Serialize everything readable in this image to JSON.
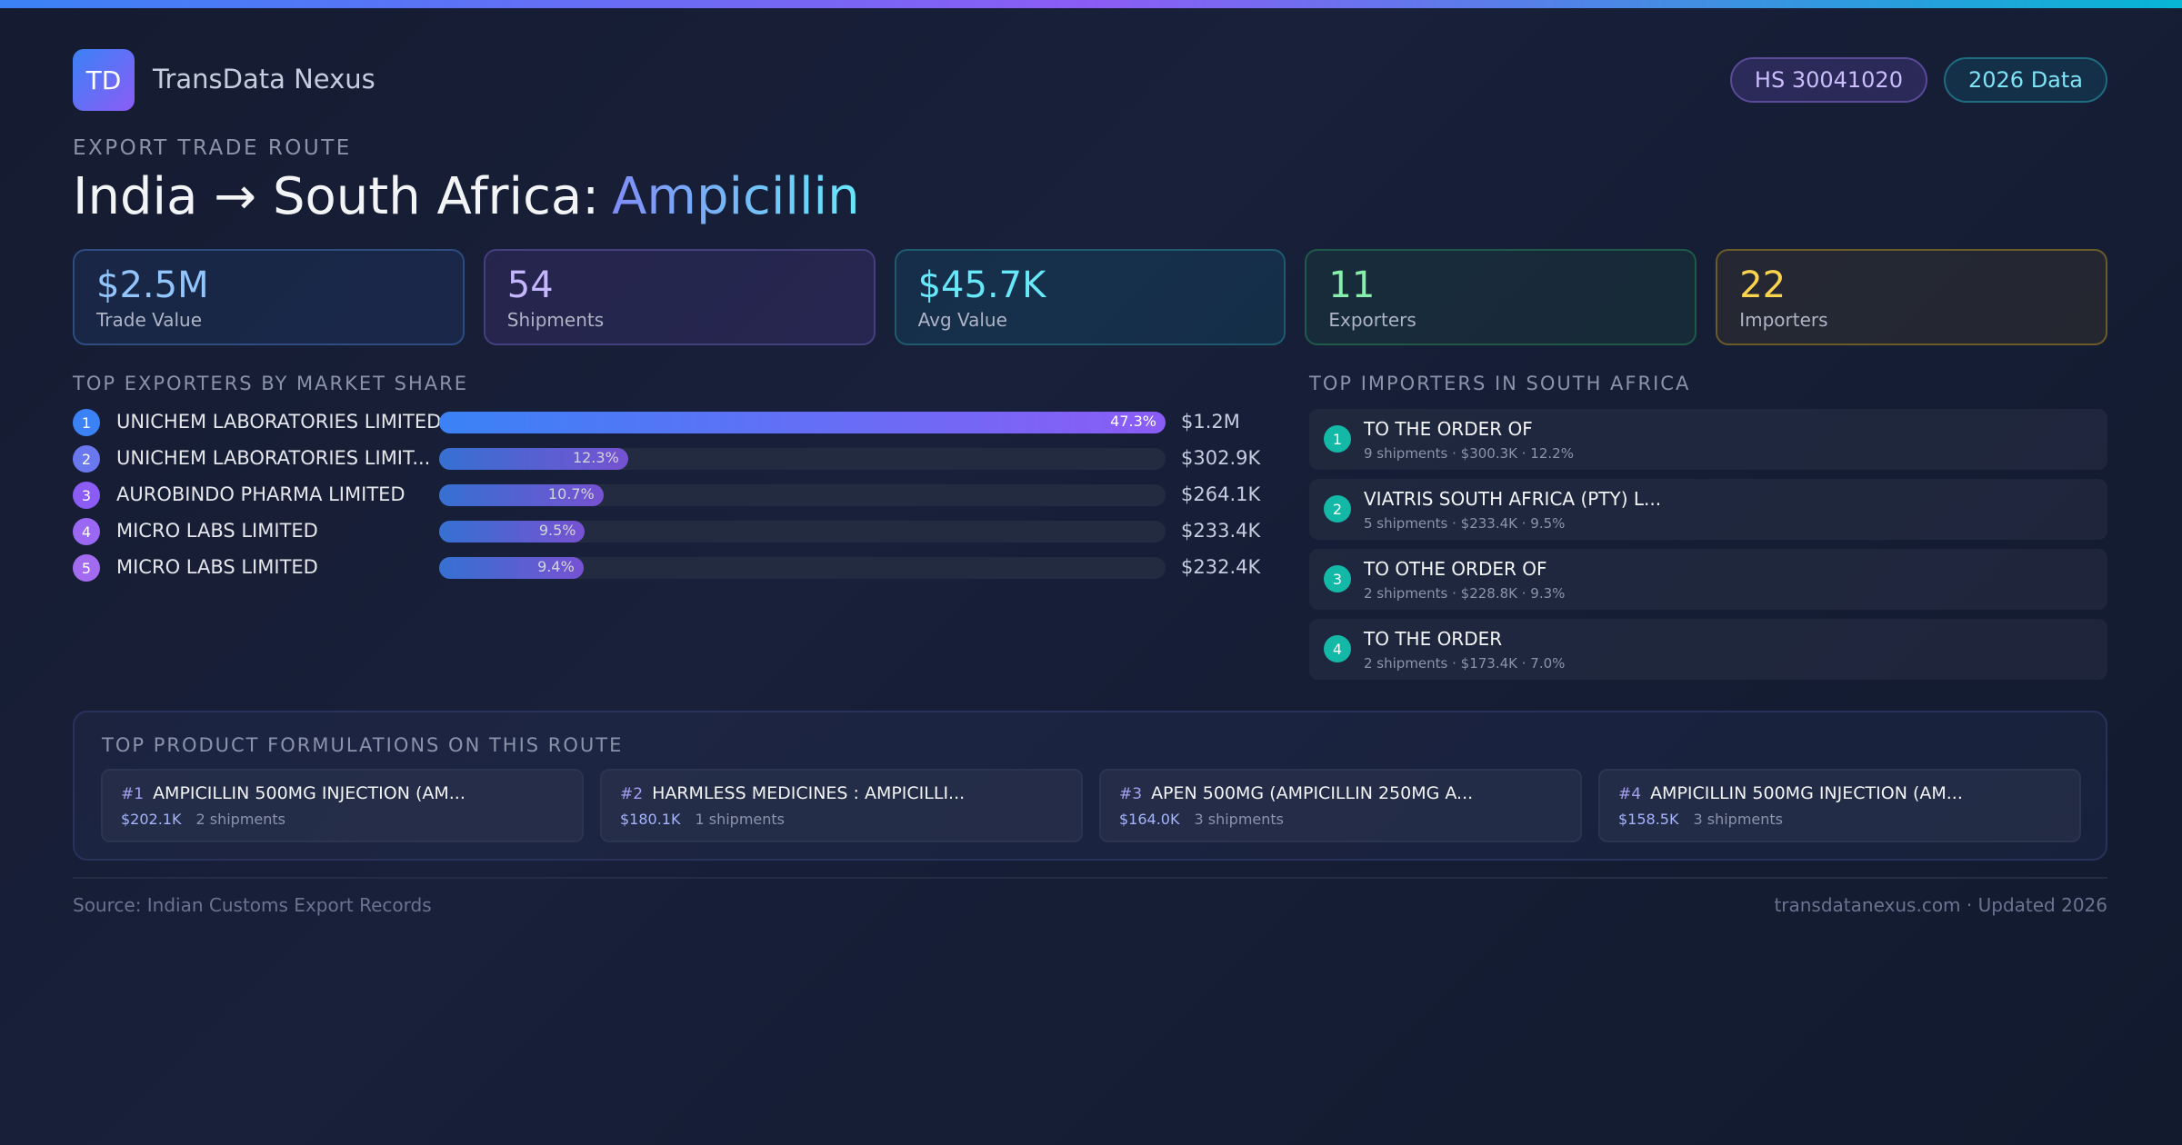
{
  "header": {
    "logo": "TD",
    "brand": "TransData Nexus",
    "badges": [
      "HS 30041020",
      "2026 Data"
    ]
  },
  "route": {
    "kicker": "EXPORT TRADE ROUTE",
    "title": "India → South Africa:",
    "product": "Ampicillin"
  },
  "stats": [
    {
      "value": "$2.5M",
      "label": "Trade Value"
    },
    {
      "value": "54",
      "label": "Shipments"
    },
    {
      "value": "$45.7K",
      "label": "Avg Value"
    },
    {
      "value": "11",
      "label": "Exporters"
    },
    {
      "value": "22",
      "label": "Importers"
    }
  ],
  "exporters": {
    "title": "TOP EXPORTERS BY MARKET SHARE",
    "items": [
      {
        "rank": 1,
        "name": "UNICHEM LABORATORIES LIMITED",
        "share": 47.3,
        "share_label": "47.3%",
        "value": "$1.2M"
      },
      {
        "rank": 2,
        "name": "UNICHEM LABORATORIES LIMIT...",
        "share": 12.3,
        "share_label": "12.3%",
        "value": "$302.9K"
      },
      {
        "rank": 3,
        "name": "AUROBINDO PHARMA LIMITED",
        "share": 10.7,
        "share_label": "10.7%",
        "value": "$264.1K"
      },
      {
        "rank": 4,
        "name": "MICRO LABS LIMITED",
        "share": 9.5,
        "share_label": "9.5%",
        "value": "$233.4K"
      },
      {
        "rank": 5,
        "name": "MICRO LABS LIMITED",
        "share": 9.4,
        "share_label": "9.4%",
        "value": "$232.4K"
      }
    ]
  },
  "importers": {
    "title": "TOP IMPORTERS IN SOUTH AFRICA",
    "items": [
      {
        "rank": 1,
        "name": "TO THE ORDER OF",
        "detail": "9 shipments · $300.3K · 12.2%"
      },
      {
        "rank": 2,
        "name": "VIATRIS SOUTH AFRICA (PTY) L...",
        "detail": "5 shipments · $233.4K · 9.5%"
      },
      {
        "rank": 3,
        "name": "TO OTHE ORDER OF",
        "detail": "2 shipments · $228.8K · 9.3%"
      },
      {
        "rank": 4,
        "name": "TO THE ORDER",
        "detail": "2 shipments · $173.4K · 7.0%"
      }
    ]
  },
  "formulations": {
    "title": "TOP PRODUCT FORMULATIONS ON THIS ROUTE",
    "items": [
      {
        "rank": "#1",
        "name": "AMPICILLIN 500MG INJECTION (AM...",
        "value": "$202.1K",
        "shipments": "2 shipments"
      },
      {
        "rank": "#2",
        "name": "HARMLESS MEDICINES : AMPICILLI...",
        "value": "$180.1K",
        "shipments": "1 shipments"
      },
      {
        "rank": "#3",
        "name": "APEN 500MG (AMPICILLIN 250MG A...",
        "value": "$164.0K",
        "shipments": "3 shipments"
      },
      {
        "rank": "#4",
        "name": "AMPICILLIN 500MG INJECTION (AM...",
        "value": "$158.5K",
        "shipments": "3 shipments"
      }
    ]
  },
  "footer": {
    "source": "Source: Indian Customs Export Records",
    "site": "transdatanexus.com · Updated 2026"
  }
}
